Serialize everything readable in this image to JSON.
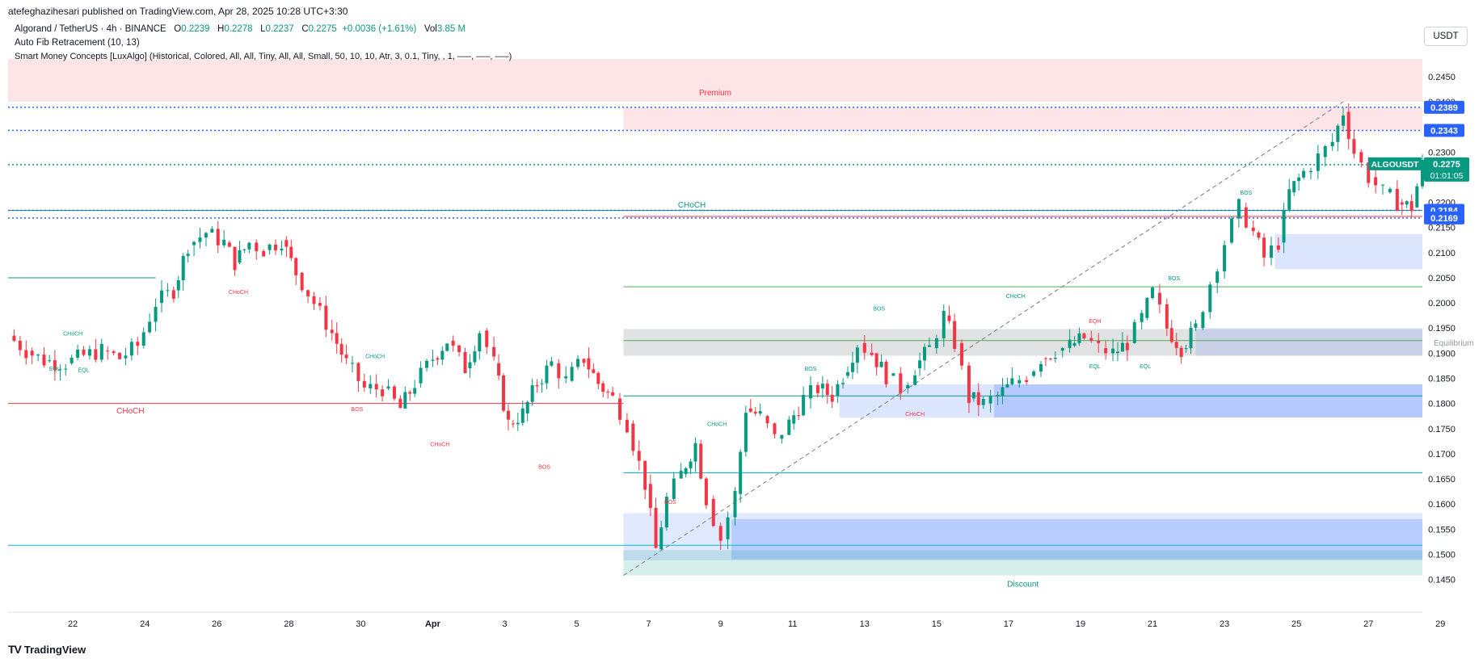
{
  "header": {
    "publisher": "atefeghazihesari published on TradingView.com, Apr 28, 2025 10:28 UTC+3:30",
    "symbol_line": "Algorand / TetherUS · 4h · BINANCE",
    "ohlc": {
      "o_label": "O",
      "o": "0.2239",
      "h_label": "H",
      "h": "0.2278",
      "l_label": "L",
      "l": "0.2237",
      "c_label": "C",
      "c": "0.2275",
      "change": "+0.0036 (+1.61%)",
      "vol_label": "Vol",
      "vol": "3.85 M"
    },
    "indicator1": "Auto Fib Retracement (10, 13)",
    "indicator2": "Smart Money Concepts [LuxAlgo] (Historical, Colored, All, All, Tiny, All, All, Small, 50, 10, 10, Atr, 3, 0.1, Tiny, , 1, —–, —–, —–)"
  },
  "unit_button": "USDT",
  "footer": {
    "brand": "TradingView",
    "logo": "TV"
  },
  "colors": {
    "bull": "#089981",
    "bear": "#f23645",
    "blue": "#2962ff",
    "premium": "#f23645"
  },
  "chart_data": {
    "type": "candlestick",
    "symbol": "ALGOUSDT",
    "timeframe": "4h",
    "ylim": [
      0.143,
      0.249
    ],
    "xlim": [
      -0.8,
      38.5
    ],
    "y_ticks": [
      "0.2450",
      "0.2400",
      "0.2350",
      "0.2300",
      "0.2250",
      "0.2200",
      "0.2150",
      "0.2100",
      "0.2050",
      "0.2000",
      "0.1950",
      "0.1900",
      "0.1850",
      "0.1800",
      "0.1750",
      "0.1700",
      "0.1650",
      "0.1600",
      "0.1550",
      "0.1500",
      "0.1450"
    ],
    "x_ticks": [
      {
        "label": "22",
        "x": 1
      },
      {
        "label": "24",
        "x": 3
      },
      {
        "label": "26",
        "x": 5
      },
      {
        "label": "28",
        "x": 7
      },
      {
        "label": "30",
        "x": 9
      },
      {
        "label": "Apr",
        "x": 11
      },
      {
        "label": "3",
        "x": 13
      },
      {
        "label": "5",
        "x": 15
      },
      {
        "label": "7",
        "x": 17
      },
      {
        "label": "9",
        "x": 19
      },
      {
        "label": "11",
        "x": 21
      },
      {
        "label": "13",
        "x": 23
      },
      {
        "label": "15",
        "x": 25
      },
      {
        "label": "17",
        "x": 27
      },
      {
        "label": "19",
        "x": 29
      },
      {
        "label": "21",
        "x": 31
      },
      {
        "label": "23",
        "x": 33
      },
      {
        "label": "25",
        "x": 35
      },
      {
        "label": "27",
        "x": 37
      },
      {
        "label": "29",
        "x": 39
      }
    ],
    "price_path": [
      [
        -0.8,
        0.1935
      ],
      [
        -0.3,
        0.1905
      ],
      [
        0.2,
        0.1885
      ],
      [
        0.8,
        0.188
      ],
      [
        1.3,
        0.1895
      ],
      [
        1.8,
        0.1905
      ],
      [
        2.3,
        0.189
      ],
      [
        2.8,
        0.1915
      ],
      [
        3.3,
        0.2
      ],
      [
        3.8,
        0.2025
      ],
      [
        4.2,
        0.2115
      ],
      [
        4.7,
        0.214
      ],
      [
        5.2,
        0.212
      ],
      [
        5.5,
        0.208
      ],
      [
        5.9,
        0.212
      ],
      [
        6.3,
        0.2105
      ],
      [
        6.8,
        0.2125
      ],
      [
        7.2,
        0.206
      ],
      [
        7.7,
        0.2
      ],
      [
        8.2,
        0.194
      ],
      [
        8.6,
        0.188
      ],
      [
        9.1,
        0.183
      ],
      [
        9.6,
        0.183
      ],
      [
        10.1,
        0.179
      ],
      [
        10.5,
        0.184
      ],
      [
        11.0,
        0.189
      ],
      [
        11.4,
        0.1925
      ],
      [
        11.9,
        0.187
      ],
      [
        12.3,
        0.1945
      ],
      [
        12.7,
        0.188
      ],
      [
        13.1,
        0.176
      ],
      [
        13.5,
        0.178
      ],
      [
        13.9,
        0.184
      ],
      [
        14.3,
        0.188
      ],
      [
        14.7,
        0.1845
      ],
      [
        15.2,
        0.189
      ],
      [
        15.6,
        0.184
      ],
      [
        16.0,
        0.181
      ],
      [
        16.4,
        0.176
      ],
      [
        16.9,
        0.164
      ],
      [
        17.2,
        0.151
      ],
      [
        17.5,
        0.161
      ],
      [
        17.9,
        0.166
      ],
      [
        18.3,
        0.172
      ],
      [
        18.6,
        0.161
      ],
      [
        19.0,
        0.153
      ],
      [
        19.4,
        0.162
      ],
      [
        19.7,
        0.179
      ],
      [
        20.1,
        0.1775
      ],
      [
        20.5,
        0.173
      ],
      [
        20.9,
        0.176
      ],
      [
        21.3,
        0.181
      ],
      [
        21.7,
        0.183
      ],
      [
        22.1,
        0.1815
      ],
      [
        22.4,
        0.1855
      ],
      [
        22.8,
        0.192
      ],
      [
        23.2,
        0.19
      ],
      [
        23.6,
        0.1855
      ],
      [
        24.0,
        0.183
      ],
      [
        24.4,
        0.187
      ],
      [
        24.8,
        0.191
      ],
      [
        25.2,
        0.1975
      ],
      [
        25.5,
        0.192
      ],
      [
        25.9,
        0.181
      ],
      [
        26.3,
        0.18
      ],
      [
        26.7,
        0.1815
      ],
      [
        27.1,
        0.184
      ],
      [
        27.5,
        0.1855
      ],
      [
        27.9,
        0.189
      ],
      [
        28.3,
        0.1905
      ],
      [
        28.7,
        0.1915
      ],
      [
        29.1,
        0.193
      ],
      [
        29.5,
        0.191
      ],
      [
        29.9,
        0.19
      ],
      [
        30.3,
        0.192
      ],
      [
        30.7,
        0.197
      ],
      [
        31.0,
        0.202
      ],
      [
        31.4,
        0.195
      ],
      [
        31.8,
        0.191
      ],
      [
        32.2,
        0.195
      ],
      [
        32.6,
        0.204
      ],
      [
        33.0,
        0.212
      ],
      [
        33.4,
        0.219
      ],
      [
        33.8,
        0.214
      ],
      [
        34.1,
        0.209
      ],
      [
        34.5,
        0.212
      ],
      [
        34.8,
        0.222
      ],
      [
        35.2,
        0.226
      ],
      [
        35.6,
        0.229
      ],
      [
        36.0,
        0.232
      ],
      [
        36.3,
        0.238
      ],
      [
        36.6,
        0.23
      ],
      [
        37.0,
        0.225
      ],
      [
        37.4,
        0.222
      ],
      [
        37.8,
        0.22
      ],
      [
        38.2,
        0.219
      ],
      [
        38.5,
        0.2275
      ]
    ],
    "zones": [
      {
        "kind": "premium",
        "x0": -0.8,
        "x1": 38.5,
        "y0": 0.24,
        "y1": 0.2485,
        "label": "Premium",
        "color": "#f23645",
        "opacity": 0.13
      },
      {
        "kind": "premium",
        "x0": 16.3,
        "x1": 38.5,
        "y0": 0.2343,
        "y1": 0.2389,
        "label": "",
        "color": "#f23645",
        "opacity": 0.13
      },
      {
        "kind": "equilibrium",
        "x0": 16.3,
        "x1": 38.5,
        "y0": 0.1895,
        "y1": 0.1948,
        "label": "Equilibrium",
        "color": "#787b86",
        "opacity": 0.22
      },
      {
        "kind": "ob",
        "x0": 32.2,
        "x1": 38.5,
        "y0": 0.1895,
        "y1": 0.195,
        "label": "",
        "color": "#2962ff",
        "opacity": 0.14
      },
      {
        "kind": "ob",
        "x0": 34.4,
        "x1": 38.5,
        "y0": 0.2067,
        "y1": 0.2137,
        "label": "",
        "color": "#2962ff",
        "opacity": 0.16
      },
      {
        "kind": "ob",
        "x0": 22.3,
        "x1": 38.5,
        "y0": 0.1772,
        "y1": 0.1838,
        "label": "",
        "color": "#2962ff",
        "opacity": 0.16
      },
      {
        "kind": "ob",
        "x0": 26.6,
        "x1": 38.5,
        "y0": 0.1772,
        "y1": 0.1838,
        "label": "",
        "color": "#2962ff",
        "opacity": 0.22
      },
      {
        "kind": "ob",
        "x0": 16.3,
        "x1": 38.5,
        "y0": 0.1488,
        "y1": 0.1582,
        "label": "",
        "color": "#2962ff",
        "opacity": 0.14
      },
      {
        "kind": "ob",
        "x0": 19.3,
        "x1": 38.5,
        "y0": 0.149,
        "y1": 0.157,
        "label": "",
        "color": "#2962ff",
        "opacity": 0.22
      },
      {
        "kind": "discount",
        "x0": 16.3,
        "x1": 38.5,
        "y0": 0.1458,
        "y1": 0.1508,
        "label": "Discount",
        "color": "#089981",
        "opacity": 0.16
      }
    ],
    "dotted_levels": [
      {
        "y": 0.2389,
        "color": "#2962ff"
      },
      {
        "y": 0.2343,
        "color": "#2962ff"
      },
      {
        "y": 0.2184,
        "color": "#2962ff"
      },
      {
        "y": 0.2169,
        "color": "#2962ff"
      },
      {
        "y": 0.2275,
        "color": "#089981"
      }
    ],
    "solid_levels": [
      {
        "x0": 16.3,
        "x1": 38.5,
        "y": 0.2172,
        "color": "#f23645"
      },
      {
        "x0": -0.8,
        "x1": 38.5,
        "y": 0.2184,
        "color": "#089981"
      },
      {
        "x0": -0.8,
        "x1": 3.3,
        "y": 0.205,
        "color": "#089981"
      },
      {
        "x0": 16.3,
        "x1": 38.5,
        "y": 0.2032,
        "color": "#4caf50"
      },
      {
        "x0": 16.3,
        "x1": 38.5,
        "y": 0.1925,
        "color": "#4caf50"
      },
      {
        "x0": -0.8,
        "x1": 16.3,
        "y": 0.18,
        "color": "#f23645"
      },
      {
        "x0": 16.3,
        "x1": 38.5,
        "y": 0.1815,
        "color": "#089981"
      },
      {
        "x0": 16.3,
        "x1": 38.5,
        "y": 0.1662,
        "color": "#00bcd4"
      },
      {
        "x0": -0.8,
        "x1": 38.5,
        "y": 0.1518,
        "color": "#00bcd4"
      }
    ],
    "structure_labels": [
      {
        "text": "CHoCH",
        "x": 18.2,
        "y": 0.219,
        "color": "#089981",
        "size": 10
      },
      {
        "text": "CHoCH",
        "x": 2.6,
        "y": 0.178,
        "color": "#f23645",
        "size": 10
      },
      {
        "text": "CHoCH",
        "x": 1.0,
        "y": 0.1935,
        "color": "#089981",
        "size": 7
      },
      {
        "text": "EQL",
        "x": 0.5,
        "y": 0.1865,
        "color": "#089981",
        "size": 7
      },
      {
        "text": "EQL",
        "x": 1.3,
        "y": 0.1863,
        "color": "#089981",
        "size": 7
      },
      {
        "text": "CHoCH",
        "x": 5.6,
        "y": 0.2018,
        "color": "#f23645",
        "size": 7
      },
      {
        "text": "CHoCH",
        "x": 9.4,
        "y": 0.189,
        "color": "#089981",
        "size": 7
      },
      {
        "text": "BOS",
        "x": 8.9,
        "y": 0.1785,
        "color": "#f23645",
        "size": 7
      },
      {
        "text": "CHoCH",
        "x": 11.2,
        "y": 0.1715,
        "color": "#f23645",
        "size": 7
      },
      {
        "text": "BOS",
        "x": 14.1,
        "y": 0.167,
        "color": "#f23645",
        "size": 7
      },
      {
        "text": "BOS",
        "x": 17.6,
        "y": 0.16,
        "color": "#f23645",
        "size": 7
      },
      {
        "text": "CHoCH",
        "x": 18.9,
        "y": 0.1755,
        "color": "#089981",
        "size": 7
      },
      {
        "text": "BOS",
        "x": 21.5,
        "y": 0.1865,
        "color": "#089981",
        "size": 7
      },
      {
        "text": "BOS",
        "x": 23.4,
        "y": 0.1985,
        "color": "#089981",
        "size": 7
      },
      {
        "text": "CHoCH",
        "x": 24.4,
        "y": 0.1775,
        "color": "#f23645",
        "size": 7
      },
      {
        "text": "CHoCH",
        "x": 27.2,
        "y": 0.201,
        "color": "#089981",
        "size": 7
      },
      {
        "text": "EQH",
        "x": 29.4,
        "y": 0.196,
        "color": "#f23645",
        "size": 7
      },
      {
        "text": "EQL",
        "x": 29.4,
        "y": 0.187,
        "color": "#089981",
        "size": 7
      },
      {
        "text": "EQL",
        "x": 30.8,
        "y": 0.187,
        "color": "#089981",
        "size": 7
      },
      {
        "text": "BOS",
        "x": 31.6,
        "y": 0.2045,
        "color": "#089981",
        "size": 7
      },
      {
        "text": "BOS",
        "x": 33.6,
        "y": 0.2215,
        "color": "#089981",
        "size": 7
      }
    ],
    "fib_line": {
      "x0": 16.3,
      "y0": 0.1458,
      "x1": 36.3,
      "y1": 0.24
    },
    "price_tags": [
      {
        "text": "0.2389",
        "y": 0.2389,
        "color": "#2962ff"
      },
      {
        "text": "0.2343",
        "y": 0.2343,
        "color": "#2962ff"
      },
      {
        "text": "0.2184",
        "y": 0.2184,
        "color": "#2962ff"
      },
      {
        "text": "0.2169",
        "y": 0.2169,
        "color": "#2962ff"
      }
    ],
    "current_price": {
      "symbol": "ALGOUSDT",
      "price": "0.2275",
      "countdown": "01:01:05",
      "y": 0.2275,
      "color": "#089981"
    }
  }
}
